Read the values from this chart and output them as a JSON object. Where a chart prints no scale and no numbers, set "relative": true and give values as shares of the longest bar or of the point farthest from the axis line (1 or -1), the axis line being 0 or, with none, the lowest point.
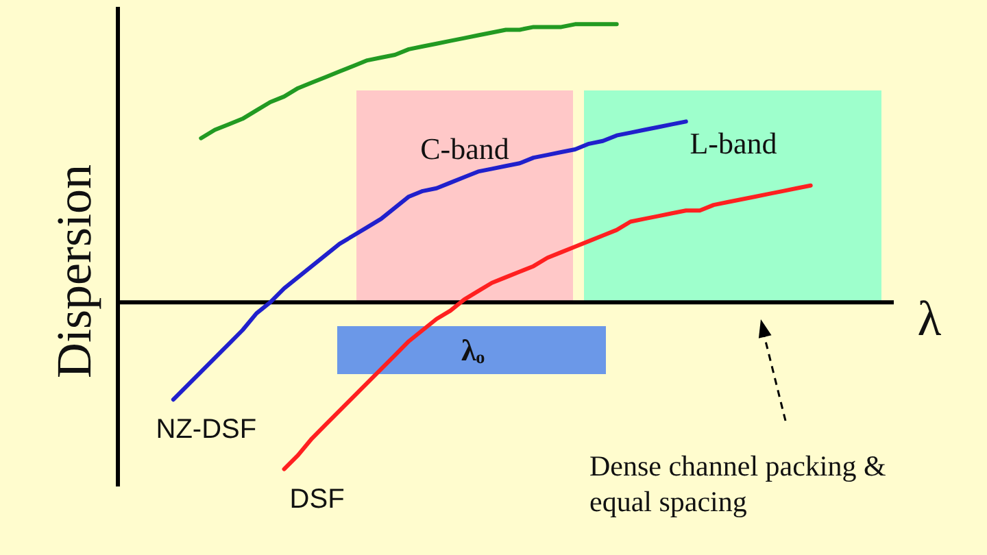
{
  "chart_data": {
    "type": "line",
    "relative": true,
    "xlabel": "λ",
    "ylabel": "Dispersion",
    "legend": false,
    "categories": [
      null,
      null,
      null,
      null,
      null,
      null,
      null,
      null,
      null,
      null,
      null,
      null,
      null,
      null,
      null,
      null,
      null,
      null,
      null,
      null,
      null,
      null,
      null,
      null,
      null,
      null,
      null,
      null,
      null,
      null,
      null,
      null,
      null,
      null,
      null,
      null,
      null,
      null,
      null,
      null,
      null,
      null,
      null,
      null,
      null,
      null,
      null,
      null,
      null,
      null,
      null,
      null,
      null,
      null,
      null,
      null,
      null
    ],
    "series": [
      {
        "color": "#229a22",
        "values": [
          null,
          null,
          null,
          null,
          null,
          null,
          0.59,
          0.62,
          0.64,
          0.66,
          0.69,
          0.72,
          0.74,
          0.77,
          0.79,
          0.81,
          0.83,
          0.85,
          0.87,
          0.88,
          0.89,
          0.91,
          0.92,
          0.93,
          0.94,
          0.95,
          0.96,
          0.97,
          0.98,
          0.98,
          0.99,
          0.99,
          0.99,
          1,
          1,
          1,
          1,
          null,
          null,
          null,
          null,
          null,
          null,
          null,
          null,
          null,
          null,
          null,
          null,
          null,
          null,
          null,
          null,
          null,
          null,
          null,
          null
        ]
      },
      {
        "name": "NZ-DSF",
        "color": "#2020cc",
        "values": [
          null,
          null,
          null,
          null,
          -0.35,
          -0.3,
          -0.25,
          -0.2,
          -0.15,
          -0.1,
          -0.04,
          0.0,
          0.05,
          0.09,
          0.13,
          0.17,
          0.21,
          0.24,
          0.27,
          0.3,
          0.34,
          0.38,
          0.4,
          0.41,
          0.43,
          0.45,
          0.47,
          0.48,
          0.49,
          0.5,
          0.52,
          0.53,
          0.54,
          0.55,
          0.57,
          0.58,
          0.6,
          0.61,
          0.62,
          0.63,
          0.64,
          0.65,
          null,
          null,
          null,
          null,
          null,
          null,
          null,
          null,
          null,
          null,
          null,
          null,
          null,
          null,
          null
        ]
      },
      {
        "name": "DSF",
        "color": "#ff2020",
        "values": [
          null,
          null,
          null,
          null,
          null,
          null,
          null,
          null,
          null,
          null,
          null,
          null,
          -0.6,
          -0.55,
          -0.49,
          -0.44,
          -0.39,
          -0.34,
          -0.29,
          -0.24,
          -0.19,
          -0.14,
          -0.1,
          -0.06,
          -0.03,
          0.01,
          0.04,
          0.07,
          0.09,
          0.11,
          0.13,
          0.16,
          0.18,
          0.2,
          0.22,
          0.24,
          0.26,
          0.29,
          0.3,
          0.31,
          0.32,
          0.33,
          0.33,
          0.35,
          0.36,
          0.37,
          0.38,
          0.39,
          0.4,
          0.41,
          0.42,
          null,
          null,
          null,
          null,
          null,
          null
        ]
      }
    ],
    "annotations": [
      "C-band",
      "L-band",
      "λₒ",
      "Dense channel packing & equal spacing"
    ]
  }
}
